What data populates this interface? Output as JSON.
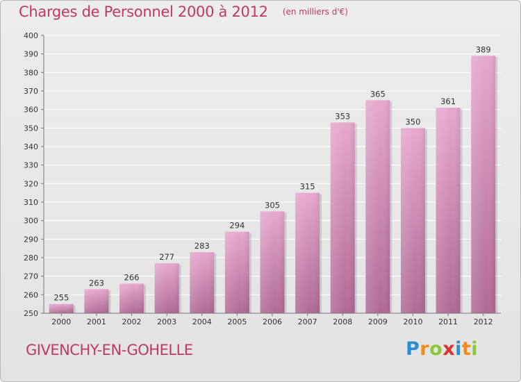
{
  "chart_data": {
    "type": "bar",
    "title": "Charges de Personnel 2000 à 2012",
    "subtitle": "(en milliers d'€)",
    "categories": [
      "2000",
      "2001",
      "2002",
      "2003",
      "2004",
      "2005",
      "2006",
      "2007",
      "2008",
      "2009",
      "2010",
      "2011",
      "2012"
    ],
    "values": [
      255,
      263,
      266,
      277,
      283,
      294,
      305,
      315,
      353,
      365,
      350,
      361,
      389
    ],
    "ylim": [
      250,
      400
    ],
    "yticks": [
      250,
      260,
      270,
      280,
      290,
      300,
      310,
      320,
      330,
      340,
      350,
      360,
      370,
      380,
      390,
      400
    ],
    "grid": true,
    "bar_color": "#d088b0",
    "accent_color": "#c03868"
  },
  "footer": {
    "commune": "GIVENCHY-EN-GOHELLE"
  },
  "logo": {
    "letters": [
      {
        "char": "P",
        "color": "#2a8fd0"
      },
      {
        "char": "r",
        "color": "#f08c1c"
      },
      {
        "char": "o",
        "color": "#8cc63e"
      },
      {
        "char": "x",
        "color": "#e0302a"
      },
      {
        "char": "i",
        "color": "#2a8fd0"
      },
      {
        "char": "t",
        "color": "#f08c1c"
      },
      {
        "char": "i",
        "color": "#8cc63e"
      }
    ]
  }
}
